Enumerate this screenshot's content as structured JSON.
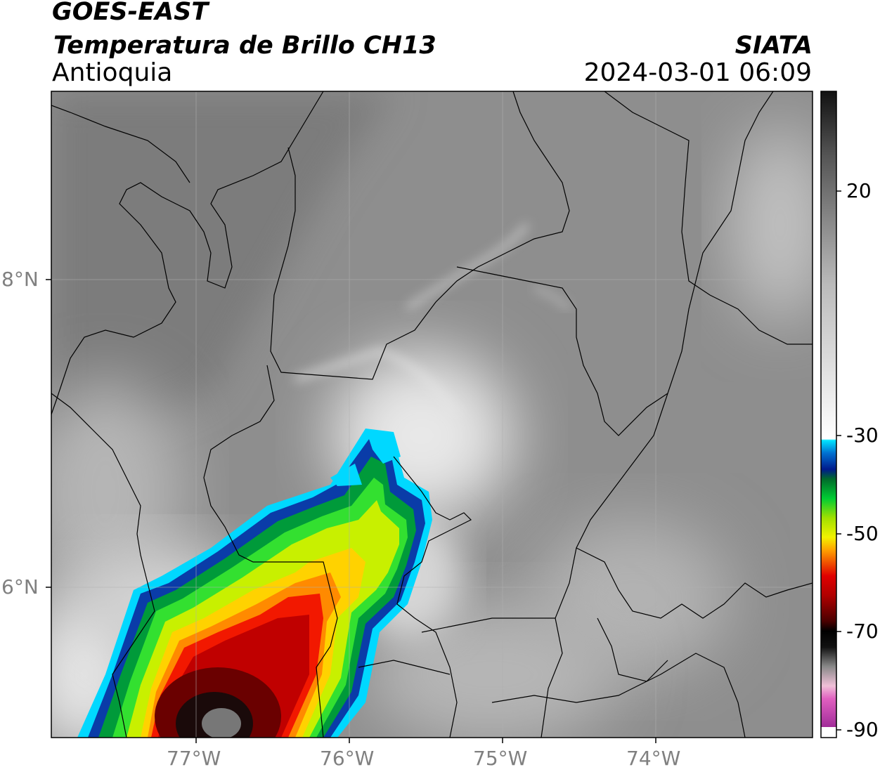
{
  "header": {
    "satellite": "GOES-EAST",
    "product": "Temperatura de Brillo CH13",
    "region": "Antioquia",
    "agency": "SIATA",
    "timestamp": "2024-03-01 06:09"
  },
  "map": {
    "lon_range": [
      -77.95,
      -72.98
    ],
    "lat_range": [
      4.95,
      9.15
    ],
    "grid": true,
    "lon_ticks": [
      {
        "value": -77,
        "label": "77°W"
      },
      {
        "value": -76,
        "label": "76°W"
      },
      {
        "value": -75,
        "label": "75°W"
      },
      {
        "value": -74,
        "label": "74°W"
      }
    ],
    "lat_ticks": [
      {
        "value": 8,
        "label": "8°N"
      },
      {
        "value": 6,
        "label": "6°N"
      }
    ]
  },
  "colorbar": {
    "range": [
      -90,
      40
    ],
    "ticks": [
      {
        "value": 20,
        "label": "20"
      },
      {
        "value": -30,
        "label": "-30"
      },
      {
        "value": -50,
        "label": "-50"
      },
      {
        "value": -70,
        "label": "-70"
      },
      {
        "value": -90,
        "label": "-90"
      }
    ],
    "colors": {
      "warm_dark": "#111111",
      "warm_mid": "#9a9a9a",
      "cold_white": "#f5f5f5",
      "cyan": "#00e5ff",
      "dark_blue": "#001a8c",
      "green": "#00cc33",
      "yellow": "#f2f200",
      "orange": "#ffa000",
      "red": "#e00000",
      "dark_red": "#4a0000",
      "black": "#000000",
      "pink": "#e060c0",
      "purple": "#8a1a8a"
    }
  }
}
